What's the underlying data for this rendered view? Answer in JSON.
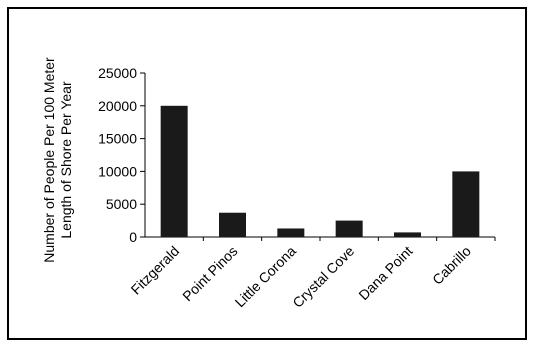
{
  "chart_data": {
    "type": "bar",
    "title": "",
    "ylabel_line1": "Number of People Per 100 Meter",
    "ylabel_line2": "Length of Shore Per Year",
    "xlabel": "",
    "categories": [
      "Fitzgerald",
      "Point Pinos",
      "Little Corona",
      "Crystal Cove",
      "Dana Point",
      "Cabrillo"
    ],
    "values": [
      20000,
      3700,
      1300,
      2500,
      700,
      10000
    ],
    "ylim": [
      0,
      25000
    ],
    "yticks": [
      0,
      5000,
      10000,
      15000,
      20000,
      25000
    ],
    "ytick_labels": [
      "0",
      "5000",
      "10000",
      "15000",
      "20000",
      "25000"
    ],
    "grid": false,
    "legend": "none",
    "bar_color": "#1a1a1a"
  }
}
